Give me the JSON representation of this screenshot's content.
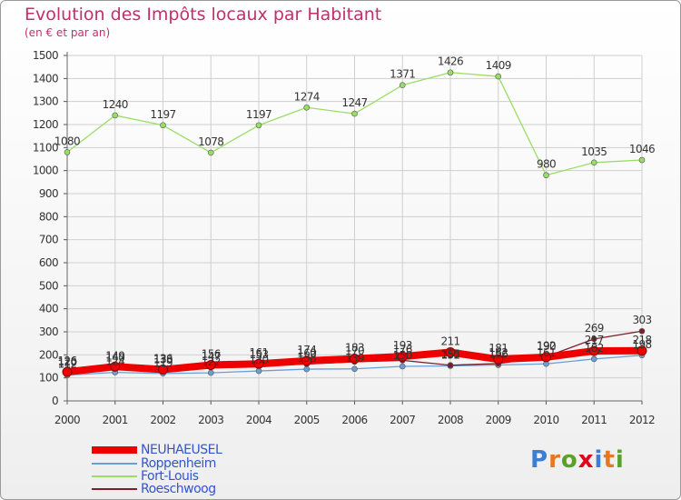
{
  "header": {
    "title": "Evolution des Impôts locaux par Habitant",
    "subtitle": "(en € et par an)"
  },
  "logo": {
    "text": "Proxiti",
    "letter_colors": [
      "#3a7fd5",
      "#e87722",
      "#5aa12a",
      "#e2001a",
      "#3a7fd5",
      "#e87722",
      "#5aa12a"
    ]
  },
  "chart_data": {
    "type": "line",
    "x": [
      2000,
      2001,
      2002,
      2003,
      2004,
      2005,
      2006,
      2007,
      2008,
      2009,
      2010,
      2011,
      2012
    ],
    "ylim": [
      0,
      1500
    ],
    "yticks": [
      0,
      100,
      200,
      300,
      400,
      500,
      600,
      700,
      800,
      900,
      1000,
      1100,
      1200,
      1300,
      1400,
      1500
    ],
    "grid": true,
    "legend_position": "bottom-left",
    "series": [
      {
        "name": "Roppenheim",
        "color": "#6b9fd4",
        "values": [
          112,
          124,
          119,
          122,
          130,
          138,
          139,
          150,
          152,
          156,
          161,
          182,
          198
        ]
      },
      {
        "name": "Fort-Louis",
        "color": "#99dd66",
        "values": [
          1080,
          1240,
          1197,
          1078,
          1197,
          1274,
          1247,
          1371,
          1426,
          1409,
          980,
          1035,
          1046
        ]
      },
      {
        "name": "Roeschwoog",
        "color": "#7a1f2b",
        "values": [
          120,
          140,
          133,
          147,
          153,
          160,
          170,
          176,
          155,
          162,
          192,
          269,
          303
        ]
      },
      {
        "name": "NEUHAEUSEL",
        "color": "#ee0000",
        "values": [
          126,
          149,
          136,
          156,
          161,
          174,
          183,
          193,
          211,
          181,
          190,
          217,
          218
        ]
      }
    ],
    "data_labels": [
      [
        112,
        124,
        119,
        122,
        130,
        138,
        139,
        150,
        152,
        156,
        161,
        182,
        198
      ],
      [
        1080,
        1240,
        1197,
        1078,
        1197,
        1274,
        1247,
        1371,
        1426,
        1409,
        980,
        1035,
        1046
      ],
      [
        120,
        140,
        133,
        147,
        153,
        160,
        170,
        176,
        155,
        162,
        192,
        269,
        303
      ],
      [
        126,
        149,
        136,
        156,
        161,
        174,
        183,
        193,
        211,
        181,
        190,
        217,
        218
      ]
    ]
  }
}
